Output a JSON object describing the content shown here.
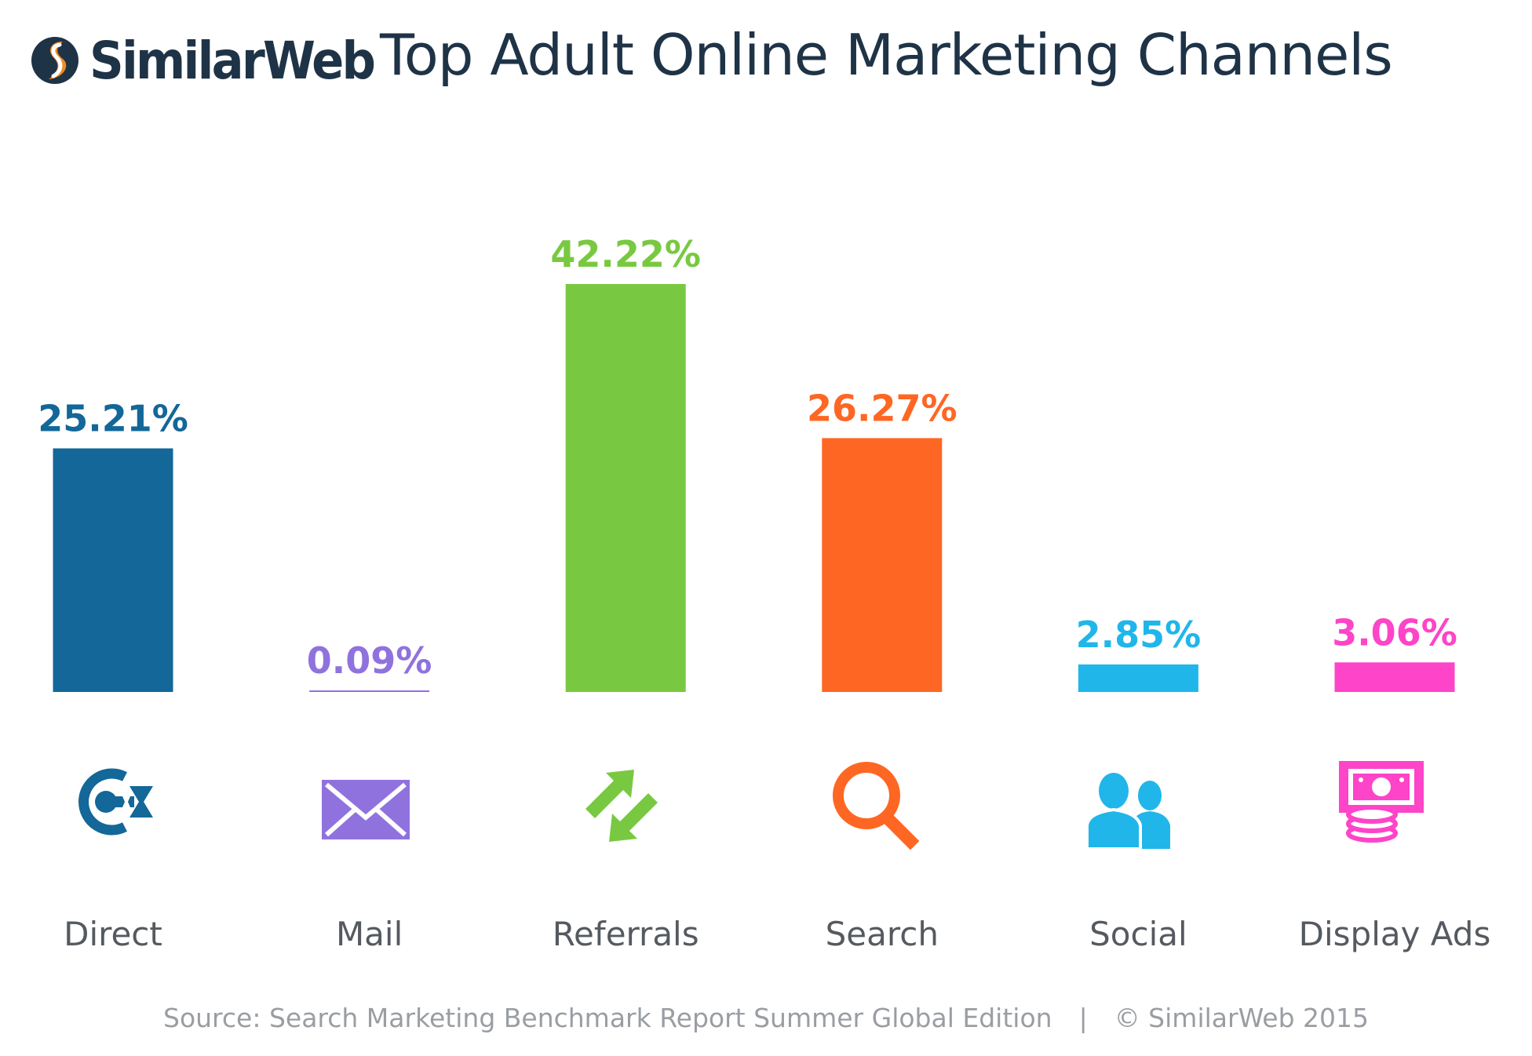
{
  "header": {
    "logo_text": "SimilarWeb",
    "title": "Top Adult Online Marketing Channels"
  },
  "colors": {
    "logo_dark": "#1f3347",
    "logo_orange": "#f08a24",
    "direct": "#136799",
    "mail": "#9072de",
    "referrals": "#78c941",
    "search": "#fe6723",
    "social": "#20b6ea",
    "display_ads": "#fe44c8"
  },
  "chart_data": {
    "type": "bar",
    "title": "Top Adult Online Marketing Channels",
    "categories": [
      "Direct",
      "Mail",
      "Referrals",
      "Search",
      "Social",
      "Display Ads"
    ],
    "values": [
      25.21,
      0.09,
      42.22,
      26.27,
      2.85,
      3.06
    ],
    "value_labels": [
      "25.21%",
      "0.09%",
      "42.22%",
      "26.27%",
      "2.85%",
      "3.06%"
    ],
    "series_colors": [
      "#136799",
      "#9072de",
      "#78c941",
      "#fe6723",
      "#20b6ea",
      "#fe44c8"
    ],
    "icons": [
      "direct-icon",
      "mail-icon",
      "referrals-icon",
      "search-icon",
      "social-icon",
      "display-ads-icon"
    ],
    "xlabel": "",
    "ylabel": "",
    "ylim": [
      0,
      42.22
    ],
    "grid": false,
    "legend": "none"
  },
  "footer": {
    "source": "Source: Search Marketing Benchmark Report Summer Global Edition",
    "separator": "|",
    "copyright": "© SimilarWeb 2015"
  }
}
